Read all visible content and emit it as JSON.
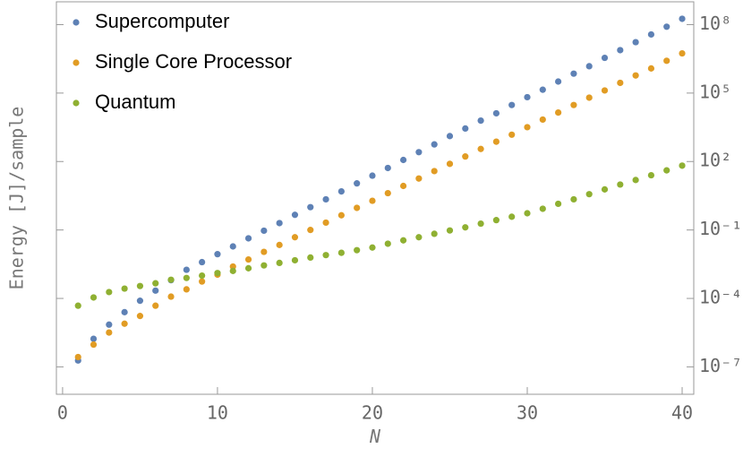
{
  "chart_data": {
    "type": "scatter",
    "x_label": "N",
    "y_label": "Energy [J]/sample",
    "log_y": true,
    "legend": "top-left",
    "xlim": [
      -0.4,
      40.75
    ],
    "xticks": [
      0,
      10,
      20,
      30,
      40
    ],
    "ylim": [
      6.3e-09,
      1000000000.0
    ],
    "yticks": [
      {
        "value": 1e-07,
        "label": "10⁻⁷"
      },
      {
        "value": 0.0001,
        "label": "10⁻⁴"
      },
      {
        "value": 0.1,
        "label": "10⁻¹"
      },
      {
        "value": 100,
        "label": "10²"
      },
      {
        "value": 100000,
        "label": "10⁵"
      },
      {
        "value": 100000000,
        "label": "10⁸"
      }
    ],
    "x": [
      1,
      2,
      3,
      4,
      5,
      6,
      7,
      8,
      9,
      10,
      11,
      12,
      13,
      14,
      15,
      16,
      17,
      18,
      19,
      20,
      21,
      22,
      23,
      24,
      25,
      26,
      27,
      28,
      29,
      30,
      31,
      32,
      33,
      34,
      35,
      36,
      37,
      38,
      39,
      40
    ],
    "series": [
      {
        "name": "Supercomputer",
        "color": "#5e81b5",
        "values": [
          1.9e-07,
          1.7e-06,
          7.1e-06,
          2.5e-05,
          7.9e-05,
          0.00022,
          0.00063,
          0.0018,
          0.0039,
          0.0087,
          0.019,
          0.043,
          0.093,
          0.2,
          0.46,
          1,
          2.2,
          4.9,
          11,
          24,
          52,
          117,
          257,
          562,
          1300,
          2800,
          6200,
          13000,
          30000,
          66000,
          140000,
          320000,
          710000,
          1500000,
          3500000,
          7600000,
          17000000,
          37000000,
          81000000,
          180000000
        ]
      },
      {
        "name": "Single Core Processor",
        "color": "#e19c24",
        "values": [
          2.7e-07,
          9.5e-07,
          3.2e-06,
          7.8e-06,
          1.7e-05,
          4.8e-05,
          0.00012,
          0.00025,
          0.00055,
          0.0011,
          0.0025,
          0.0051,
          0.011,
          0.022,
          0.048,
          0.1,
          0.21,
          0.44,
          0.93,
          1.9,
          4.1,
          8.5,
          18,
          38,
          79,
          166,
          355,
          741,
          1500,
          3200,
          6900,
          14000,
          30000,
          63000,
          130000,
          280000,
          590000,
          1200000,
          2600000,
          5500000
        ]
      },
      {
        "name": "Quantum",
        "color": "#8fb032",
        "values": [
          4.8e-05,
          0.00011,
          0.00019,
          0.00027,
          0.00035,
          0.00046,
          0.00066,
          0.00079,
          0.001,
          0.0013,
          0.0016,
          0.0021,
          0.0028,
          0.0036,
          0.0047,
          0.0062,
          0.0079,
          0.01,
          0.013,
          0.017,
          0.025,
          0.035,
          0.048,
          0.068,
          0.095,
          0.13,
          0.19,
          0.27,
          0.38,
          0.54,
          0.85,
          1.4,
          2.2,
          3.7,
          6.0,
          9.8,
          15.5,
          25,
          41,
          66
        ]
      }
    ]
  }
}
